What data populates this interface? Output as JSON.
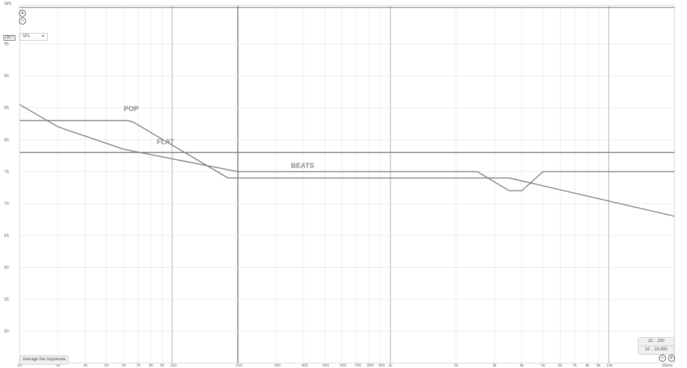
{
  "y_axis_unit": "SPL",
  "x_axis_unit": "Hz",
  "current_level": "100.7",
  "dropdown": {
    "selected": "SPL"
  },
  "average_button": "Average the responses",
  "range_buttons": [
    "10 .. 200",
    "20 .. 20,000"
  ],
  "icons": {
    "zoom_in": "zoom-in-icon",
    "zoom_out": "zoom-out-icon",
    "dropdown_arrow": "chevron-down-icon"
  },
  "colors": {
    "line": "#7a7a7a",
    "label": "#8a8a8a",
    "grid_minor": "#e3e3e3",
    "grid_major": "#9a9a9a"
  },
  "chart_data": {
    "type": "line",
    "xscale": "log",
    "xlim": [
      20,
      20000
    ],
    "ylim": [
      45,
      101
    ],
    "ylabel": "SPL",
    "xlabel": "Hz",
    "y_ticks": [
      50,
      55,
      60,
      65,
      70,
      75,
      80,
      85,
      90,
      95
    ],
    "x_tick_labels": [
      {
        "x": 20,
        "label": "20"
      },
      {
        "x": 30,
        "label": "30"
      },
      {
        "x": 40,
        "label": "40"
      },
      {
        "x": 50,
        "label": "50"
      },
      {
        "x": 60,
        "label": "60"
      },
      {
        "x": 70,
        "label": "70"
      },
      {
        "x": 80,
        "label": "80"
      },
      {
        "x": 90,
        "label": "90"
      },
      {
        "x": 100,
        "label": "100"
      },
      {
        "x": 200,
        "label": "200"
      },
      {
        "x": 300,
        "label": "300"
      },
      {
        "x": 400,
        "label": "400"
      },
      {
        "x": 500,
        "label": "500"
      },
      {
        "x": 600,
        "label": "600"
      },
      {
        "x": 700,
        "label": "700"
      },
      {
        "x": 800,
        "label": "800"
      },
      {
        "x": 900,
        "label": "900"
      },
      {
        "x": 1000,
        "label": "1k"
      },
      {
        "x": 2000,
        "label": "2k"
      },
      {
        "x": 3000,
        "label": "3k"
      },
      {
        "x": 4000,
        "label": "4k"
      },
      {
        "x": 5000,
        "label": "5k"
      },
      {
        "x": 6000,
        "label": "6k"
      },
      {
        "x": 7000,
        "label": "7k"
      },
      {
        "x": 8000,
        "label": "8k"
      },
      {
        "x": 9000,
        "label": "9k"
      },
      {
        "x": 10000,
        "label": "10k"
      },
      {
        "x": 20000,
        "label": "20kHz"
      }
    ],
    "reference_level": 100.7,
    "series": [
      {
        "name": "FLAT",
        "x": [
          20,
          20000
        ],
        "y": [
          78,
          78
        ],
        "label_at": [
          85,
          79.3
        ]
      },
      {
        "name": "POP",
        "x": [
          20,
          62,
          66,
          180,
          1000,
          3500,
          20000
        ],
        "y": [
          83,
          83,
          82.8,
          74,
          74,
          74,
          68
        ],
        "label_at": [
          60,
          84.5
        ]
      },
      {
        "name": "BEATS",
        "x": [
          20,
          30,
          60,
          100,
          200,
          300,
          1000,
          2500,
          3500,
          4000,
          5000,
          20000
        ],
        "y": [
          85.5,
          82,
          78.5,
          77,
          75,
          75,
          75,
          75,
          72,
          72,
          75,
          75
        ],
        "label_at": [
          350,
          75.6
        ]
      }
    ]
  }
}
